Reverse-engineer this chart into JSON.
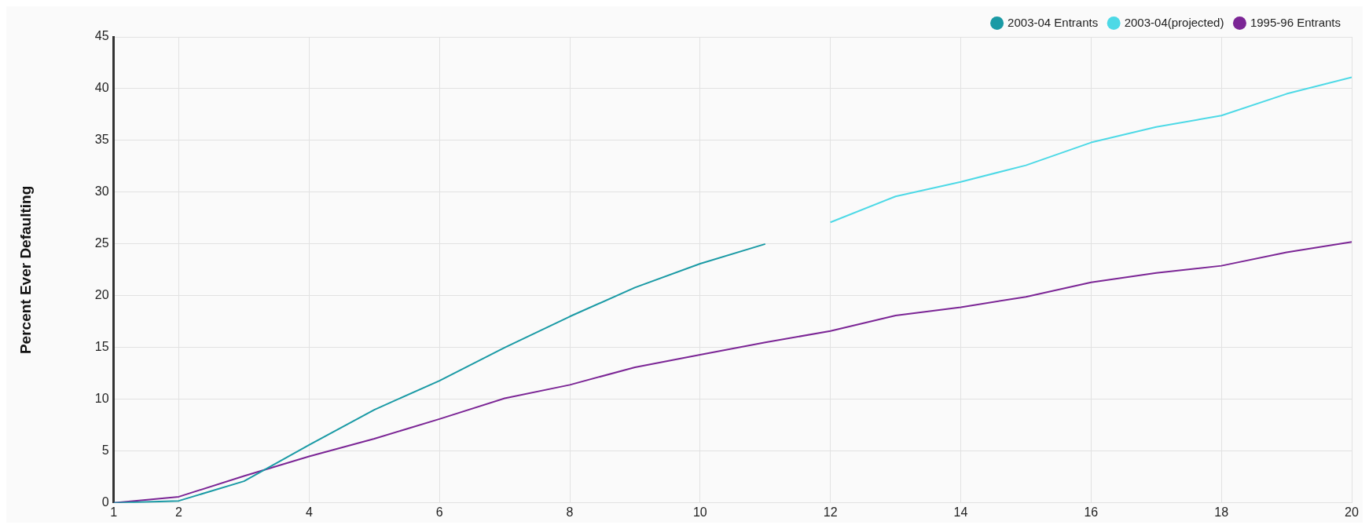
{
  "chart_data": {
    "type": "line",
    "ylabel": "Percent Ever Defaulting",
    "x": [
      1,
      2,
      3,
      4,
      5,
      6,
      7,
      8,
      9,
      10,
      11,
      12,
      13,
      14,
      15,
      16,
      17,
      18,
      19,
      20
    ],
    "series": [
      {
        "name": "2003-04 Entrants",
        "color": "#1a9aa5",
        "values": [
          0,
          0.2,
          2.1,
          5.6,
          9.0,
          11.8,
          15.0,
          18.0,
          20.8,
          23.1,
          25.0,
          null,
          null,
          null,
          null,
          null,
          null,
          null,
          null,
          null
        ]
      },
      {
        "name": "2003-04(projected)",
        "color": "#4dd9e6",
        "values": [
          null,
          null,
          null,
          null,
          null,
          null,
          null,
          null,
          null,
          null,
          null,
          27.1,
          29.6,
          31.0,
          32.6,
          34.8,
          36.3,
          37.4,
          39.5,
          41.1
        ]
      },
      {
        "name": "1995-96 Entrants",
        "color": "#7b2595",
        "values": [
          0,
          0.6,
          2.6,
          4.5,
          6.2,
          8.1,
          10.1,
          11.4,
          13.1,
          14.3,
          15.5,
          16.6,
          18.1,
          18.9,
          19.9,
          21.3,
          22.2,
          22.9,
          24.2,
          25.2
        ]
      }
    ],
    "xlim": [
      1,
      20
    ],
    "xticks": [
      1,
      2,
      4,
      6,
      8,
      10,
      12,
      14,
      16,
      18,
      20
    ],
    "ylim": [
      0,
      45
    ],
    "yticks": [
      0,
      5,
      10,
      15,
      20,
      25,
      30,
      35,
      40,
      45
    ],
    "grid": true,
    "legend": "top right",
    "marker": "none",
    "line_style": "solid"
  }
}
